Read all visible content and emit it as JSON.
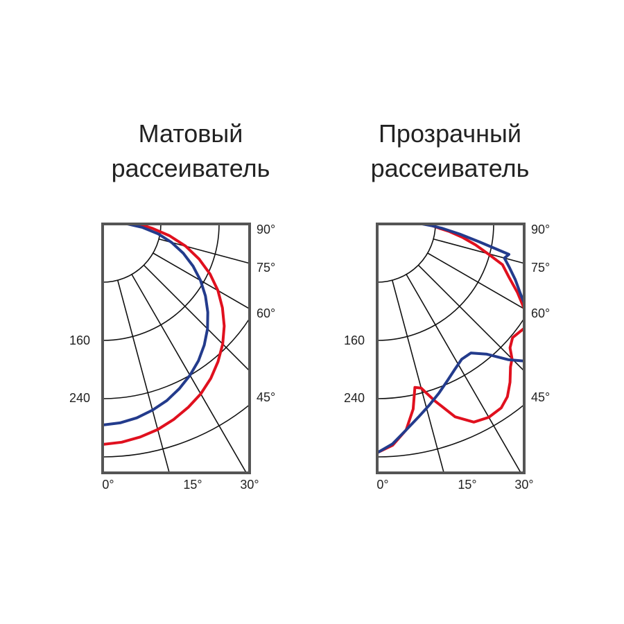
{
  "colors": {
    "frame": "#555555",
    "grid": "#111111",
    "red": "#e0101e",
    "blue": "#233b8c"
  },
  "chart_data": [
    {
      "type": "polar",
      "title": [
        "Матовый",
        "рассеиватель"
      ],
      "angle_labels": [
        "90°",
        "75°",
        "60°",
        "45°"
      ],
      "bottom_labels": [
        "0°",
        "15°",
        "30°"
      ],
      "radial_labels": [
        "160",
        "240"
      ],
      "series": [
        {
          "color": "red",
          "points": [
            [
              0,
              318
            ],
            [
              5,
              316
            ],
            [
              10,
              312
            ],
            [
              15,
              307
            ],
            [
              20,
              300
            ],
            [
              25,
              292
            ],
            [
              30,
              283
            ],
            [
              35,
              272
            ],
            [
              40,
              259
            ],
            [
              45,
              245
            ],
            [
              50,
              229
            ],
            [
              55,
              211
            ],
            [
              60,
              192
            ],
            [
              65,
              171
            ],
            [
              70,
              148
            ],
            [
              75,
              124
            ],
            [
              80,
              98
            ],
            [
              85,
              72
            ],
            [
              88,
              58
            ],
            [
              90,
              52
            ]
          ]
        },
        {
          "color": "blue",
          "points": [
            [
              0,
              290
            ],
            [
              5,
              288
            ],
            [
              10,
              284
            ],
            [
              15,
              278
            ],
            [
              20,
              271
            ],
            [
              25,
              262
            ],
            [
              30,
              252
            ],
            [
              35,
              241
            ],
            [
              40,
              228
            ],
            [
              45,
              214
            ],
            [
              50,
              198
            ],
            [
              55,
              181
            ],
            [
              60,
              163
            ],
            [
              65,
              144
            ],
            [
              70,
              124
            ],
            [
              75,
              103
            ],
            [
              80,
              81
            ],
            [
              85,
              58
            ],
            [
              90,
              36
            ]
          ]
        }
      ]
    },
    {
      "type": "polar",
      "title": [
        "Прозрачный",
        "рассеиватель"
      ],
      "angle_labels": [
        "90°",
        "75°",
        "60°",
        "45°"
      ],
      "bottom_labels": [
        "0°",
        "15°",
        "30°"
      ],
      "radial_labels": [
        "160",
        "240"
      ],
      "series": [
        {
          "color": "red",
          "points": [
            [
              0,
              330
            ],
            [
              4,
              320
            ],
            [
              8,
              300
            ],
            [
              11,
              272
            ],
            [
              13,
              242
            ],
            [
              15,
              245
            ],
            [
              18,
              268
            ],
            [
              22,
              300
            ],
            [
              26,
              318
            ],
            [
              30,
              322
            ],
            [
              34,
              320
            ],
            [
              37,
              312
            ],
            [
              40,
              298
            ],
            [
              43,
              282
            ],
            [
              45,
              275
            ],
            [
              47,
              262
            ],
            [
              50,
              255
            ],
            [
              53,
              258
            ],
            [
              56,
              262
            ],
            [
              60,
              245
            ],
            [
              64,
              225
            ],
            [
              68,
              205
            ],
            [
              72,
              190
            ],
            [
              75,
              165
            ],
            [
              78,
              145
            ],
            [
              81,
              125
            ],
            [
              84,
              105
            ],
            [
              86,
              90
            ],
            [
              88,
              80
            ],
            [
              90,
              70
            ]
          ]
        },
        {
          "color": "blue",
          "points": [
            [
              0,
              330
            ],
            [
              4,
              318
            ],
            [
              8,
              300
            ],
            [
              12,
              285
            ],
            [
              16,
              272
            ],
            [
              20,
              260
            ],
            [
              24,
              248
            ],
            [
              28,
              238
            ],
            [
              32,
              230
            ],
            [
              36,
              230
            ],
            [
              40,
              245
            ],
            [
              44,
              272
            ],
            [
              47,
              290
            ],
            [
              50,
              292
            ],
            [
              53,
              280
            ],
            [
              56,
              270
            ],
            [
              60,
              250
            ],
            [
              64,
              230
            ],
            [
              68,
              215
            ],
            [
              72,
              200
            ],
            [
              75,
              190
            ],
            [
              77,
              195
            ],
            [
              80,
              150
            ],
            [
              83,
              120
            ],
            [
              86,
              95
            ],
            [
              88,
              80
            ],
            [
              90,
              65
            ]
          ]
        }
      ]
    }
  ]
}
